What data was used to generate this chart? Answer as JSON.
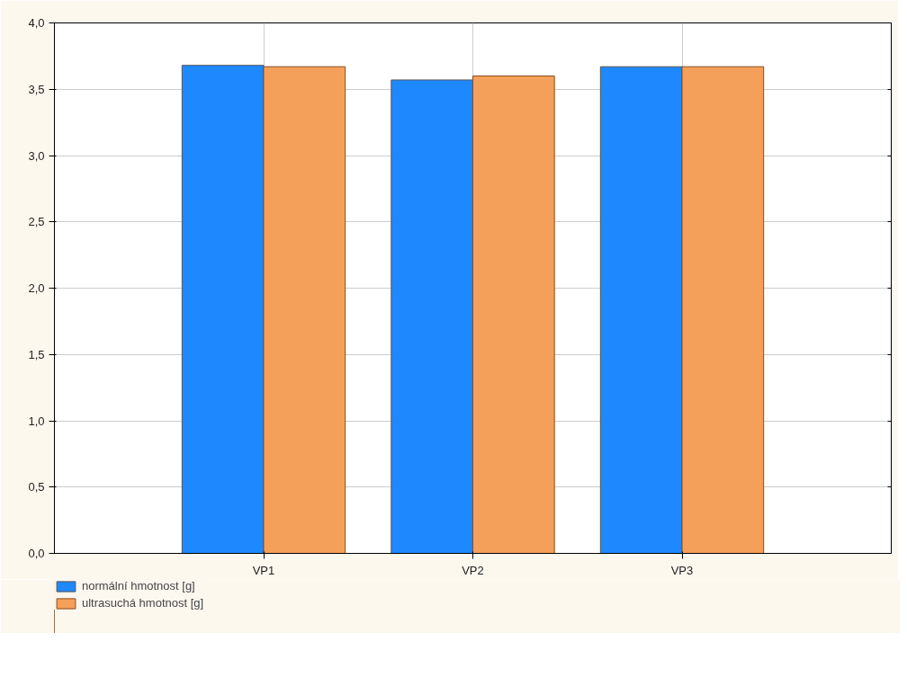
{
  "chart_data": {
    "type": "bar",
    "categories": [
      "VP1",
      "VP2",
      "VP3"
    ],
    "series": [
      {
        "name": "normální hmotnost [g]",
        "color": "#1e88ff",
        "values": [
          3.68,
          3.57,
          3.67
        ]
      },
      {
        "name": "ultrasuchá hmotnost [g]",
        "color": "#f5a05a",
        "values": [
          3.67,
          3.6,
          3.67
        ]
      }
    ],
    "ylim": [
      0,
      4
    ],
    "yticks": [
      {
        "value": 0,
        "label": "0,0"
      },
      {
        "value": 0.5,
        "label": "0,5"
      },
      {
        "value": 1,
        "label": "1,0"
      },
      {
        "value": 1.5,
        "label": "1,5"
      },
      {
        "value": 2,
        "label": "2,0"
      },
      {
        "value": 2.5,
        "label": "2,5"
      },
      {
        "value": 3,
        "label": "3,0"
      },
      {
        "value": 3.5,
        "label": "3,5"
      },
      {
        "value": 4,
        "label": "4,0"
      }
    ],
    "grid": true,
    "legend": "bottom left"
  }
}
